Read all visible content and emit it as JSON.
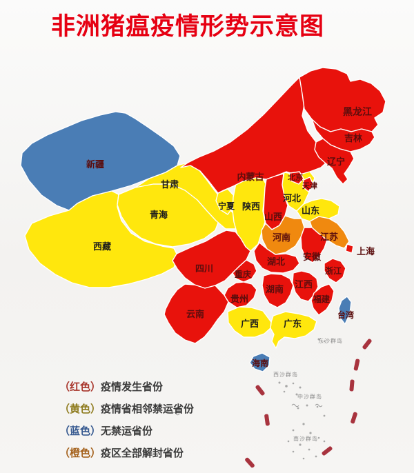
{
  "title": "非洲猪瘟疫情形势示意图",
  "palette": {
    "red": "#e8120c",
    "yellow": "#ffe70d",
    "blue": "#4a7db5",
    "orange": "#f0890f",
    "title": "#e60012",
    "label_dark": "#1c1c1c",
    "label_maroon": "#5a0d0d",
    "sea_label": "#8a8a8a",
    "dash": "#a8333e",
    "islet": "#9a9a9a"
  },
  "map": {
    "provinces": [
      {
        "key": "xinjiang",
        "name": "新疆",
        "color": "blue"
      },
      {
        "key": "xizang",
        "name": "西藏",
        "color": "yellow"
      },
      {
        "key": "qinghai",
        "name": "青海",
        "color": "yellow"
      },
      {
        "key": "gansu",
        "name": "甘肃",
        "color": "yellow"
      },
      {
        "key": "ningxia",
        "name": "宁夏",
        "color": "yellow"
      },
      {
        "key": "shaanxi",
        "name": "陕西",
        "color": "yellow"
      },
      {
        "key": "neimenggu",
        "name": "内蒙古",
        "color": "red"
      },
      {
        "key": "heilongjiang",
        "name": "黑龙江",
        "color": "red"
      },
      {
        "key": "jilin",
        "name": "吉林",
        "color": "red"
      },
      {
        "key": "liaoning",
        "name": "辽宁",
        "color": "red"
      },
      {
        "key": "hebei",
        "name": "河北",
        "color": "yellow"
      },
      {
        "key": "shanxi",
        "name": "山西",
        "color": "red"
      },
      {
        "key": "shandong",
        "name": "山东",
        "color": "yellow"
      },
      {
        "key": "henan",
        "name": "河南",
        "color": "orange"
      },
      {
        "key": "jiangsu",
        "name": "江苏",
        "color": "orange"
      },
      {
        "key": "anhui",
        "name": "安徽",
        "color": "red"
      },
      {
        "key": "hubei",
        "name": "湖北",
        "color": "red"
      },
      {
        "key": "sichuan",
        "name": "四川",
        "color": "red"
      },
      {
        "key": "chongqing",
        "name": "重庆",
        "color": "red"
      },
      {
        "key": "guizhou",
        "name": "贵州",
        "color": "red"
      },
      {
        "key": "yunnan",
        "name": "云南",
        "color": "red"
      },
      {
        "key": "hunan",
        "name": "湖南",
        "color": "red"
      },
      {
        "key": "jiangxi",
        "name": "江西",
        "color": "red"
      },
      {
        "key": "zhejiang",
        "name": "浙江",
        "color": "red"
      },
      {
        "key": "shanghai",
        "name": "上海",
        "color": "red"
      },
      {
        "key": "fujian",
        "name": "福建",
        "color": "red"
      },
      {
        "key": "taiwan",
        "name": "台湾",
        "color": "blue"
      },
      {
        "key": "guangdong",
        "name": "广东",
        "color": "yellow"
      },
      {
        "key": "guangxi",
        "name": "广西",
        "color": "yellow"
      },
      {
        "key": "hainan",
        "name": "海南",
        "color": "blue"
      },
      {
        "key": "beijing",
        "name": "北京",
        "color": "red"
      },
      {
        "key": "tianjin",
        "name": "天津",
        "color": "red"
      }
    ],
    "sea_labels": [
      "东沙群岛",
      "西沙群岛",
      "中沙群岛",
      "南沙群岛"
    ]
  },
  "legend": {
    "items": [
      {
        "prefix": "（红色）",
        "text": "疫情发生省份",
        "color": "#a8352b"
      },
      {
        "prefix": "（黄色）",
        "text": "疫情省相邻禁运省份",
        "color": "#8f7c1f"
      },
      {
        "prefix": "（蓝色）",
        "text": "无禁运省份",
        "color": "#35588f"
      },
      {
        "prefix": "（橙色）",
        "text": "疫区全部解封省份",
        "color": "#a5621d"
      }
    ]
  }
}
